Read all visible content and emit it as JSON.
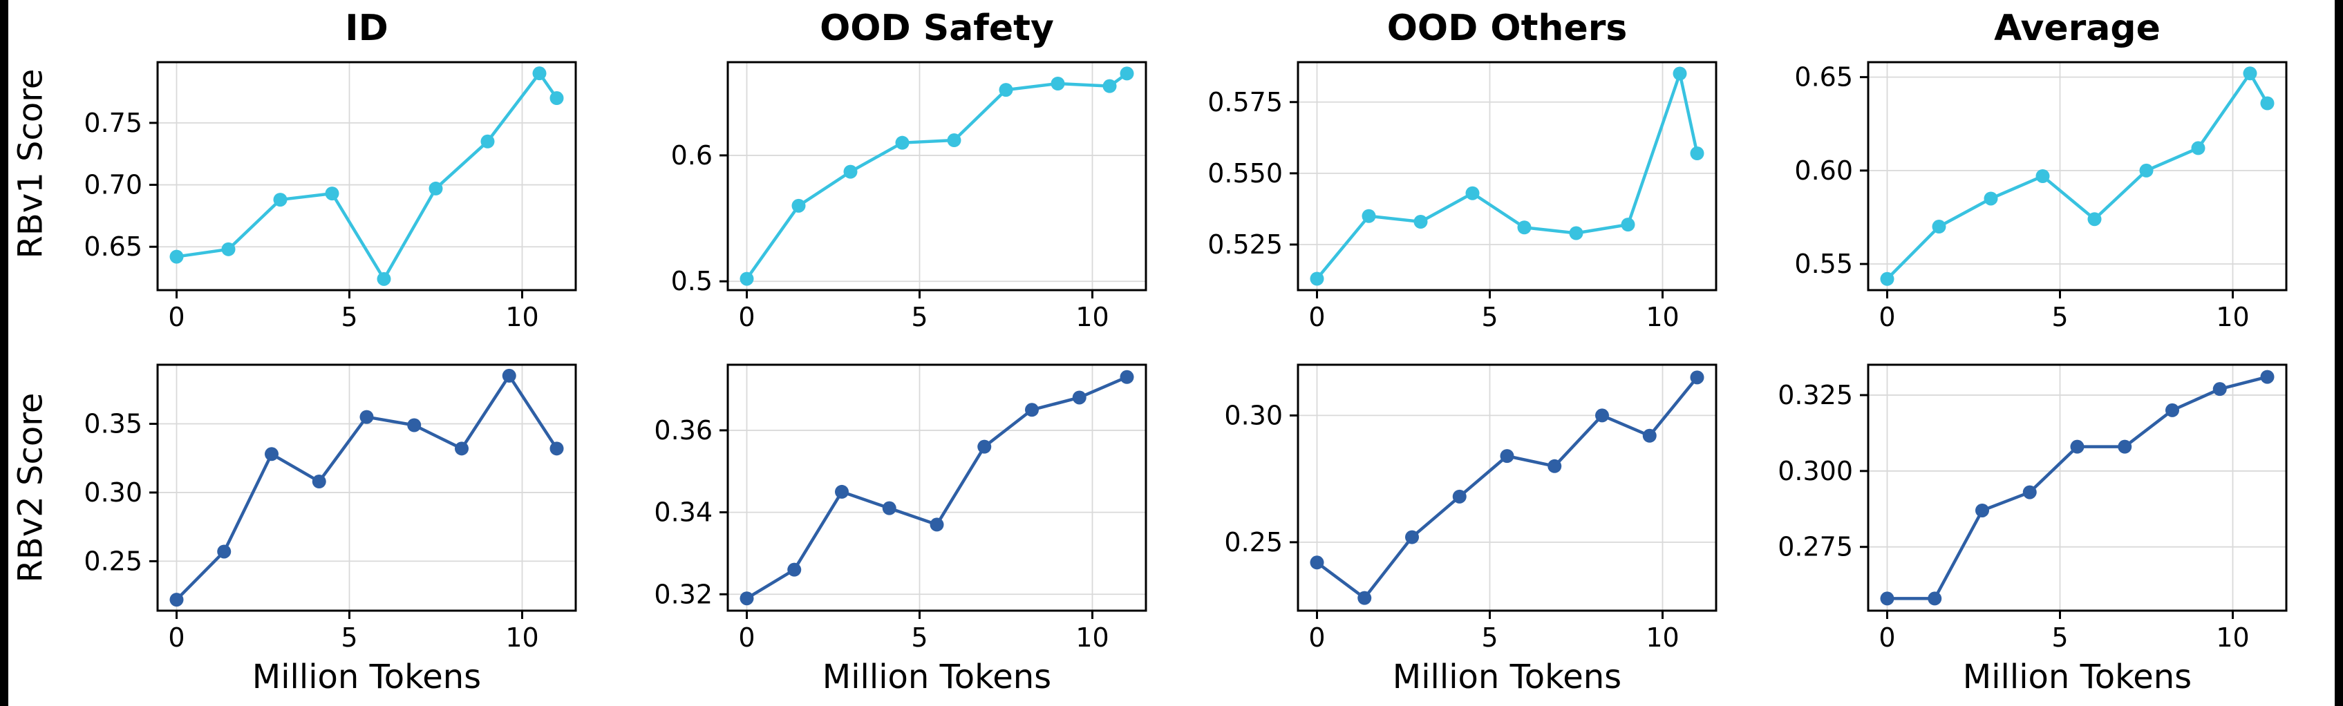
{
  "figure": {
    "row_labels": [
      "RBv1 Score",
      "RBv2 Score"
    ],
    "col_titles": [
      "ID",
      "OOD Safety",
      "OOD Others",
      "Average"
    ],
    "xlabel": "Million Tokens",
    "colors": {
      "rbv1_series": "#38c2e0",
      "rbv2_series": "#2e5fa5",
      "grid": "#d9d9d9",
      "spine": "#000000",
      "background": "#ffffff",
      "outer_frame": "#000000"
    }
  },
  "chart_data": [
    {
      "type": "line",
      "title": "ID",
      "xlabel": "",
      "series_name": "RBv1 Score",
      "series_color": "#38c2e0",
      "x": [
        0,
        1.5,
        3,
        4.5,
        6,
        7.5,
        9,
        10.5,
        11
      ],
      "y": [
        0.642,
        0.648,
        0.688,
        0.693,
        0.624,
        0.697,
        0.735,
        0.79,
        0.77
      ],
      "xlim": [
        -0.55,
        11.55
      ],
      "ylim": [
        0.615,
        0.799
      ],
      "xticks": [
        {
          "v": 0,
          "label": "0"
        },
        {
          "v": 5,
          "label": "5"
        },
        {
          "v": 10,
          "label": "10"
        }
      ],
      "yticks": [
        {
          "v": 0.65,
          "label": "0.65"
        },
        {
          "v": 0.7,
          "label": "0.70"
        },
        {
          "v": 0.75,
          "label": "0.75"
        }
      ],
      "grid": true
    },
    {
      "type": "line",
      "title": "OOD Safety",
      "xlabel": "",
      "series_name": "RBv1 Score",
      "series_color": "#38c2e0",
      "x": [
        0,
        1.5,
        3,
        4.5,
        6,
        7.5,
        9,
        10.5,
        11
      ],
      "y": [
        0.502,
        0.56,
        0.587,
        0.61,
        0.612,
        0.652,
        0.657,
        0.655,
        0.665
      ],
      "xlim": [
        -0.55,
        11.55
      ],
      "ylim": [
        0.493,
        0.674
      ],
      "xticks": [
        {
          "v": 0,
          "label": "0"
        },
        {
          "v": 5,
          "label": "5"
        },
        {
          "v": 10,
          "label": "10"
        }
      ],
      "yticks": [
        {
          "v": 0.5,
          "label": "0.5"
        },
        {
          "v": 0.6,
          "label": "0.6"
        }
      ],
      "grid": true
    },
    {
      "type": "line",
      "title": "OOD Others",
      "xlabel": "",
      "series_name": "RBv1 Score",
      "series_color": "#38c2e0",
      "x": [
        0,
        1.5,
        3,
        4.5,
        6,
        7.5,
        9,
        10.5,
        11
      ],
      "y": [
        0.513,
        0.535,
        0.533,
        0.543,
        0.531,
        0.529,
        0.532,
        0.585,
        0.557
      ],
      "xlim": [
        -0.55,
        11.55
      ],
      "ylim": [
        0.509,
        0.589
      ],
      "xticks": [
        {
          "v": 0,
          "label": "0"
        },
        {
          "v": 5,
          "label": "5"
        },
        {
          "v": 10,
          "label": "10"
        }
      ],
      "yticks": [
        {
          "v": 0.525,
          "label": "0.525"
        },
        {
          "v": 0.55,
          "label": "0.550"
        },
        {
          "v": 0.575,
          "label": "0.575"
        }
      ],
      "grid": true
    },
    {
      "type": "line",
      "title": "Average",
      "xlabel": "",
      "series_name": "RBv1 Score",
      "series_color": "#38c2e0",
      "x": [
        0,
        1.5,
        3,
        4.5,
        6,
        7.5,
        9,
        10.5,
        11
      ],
      "y": [
        0.542,
        0.57,
        0.585,
        0.597,
        0.574,
        0.6,
        0.612,
        0.652,
        0.636
      ],
      "xlim": [
        -0.55,
        11.55
      ],
      "ylim": [
        0.536,
        0.658
      ],
      "xticks": [
        {
          "v": 0,
          "label": "0"
        },
        {
          "v": 5,
          "label": "5"
        },
        {
          "v": 10,
          "label": "10"
        }
      ],
      "yticks": [
        {
          "v": 0.55,
          "label": "0.55"
        },
        {
          "v": 0.6,
          "label": "0.60"
        },
        {
          "v": 0.65,
          "label": "0.65"
        }
      ],
      "grid": true
    },
    {
      "type": "line",
      "title": "",
      "xlabel": "Million Tokens",
      "series_name": "RBv2 Score",
      "series_color": "#2e5fa5",
      "x": [
        0,
        1.375,
        2.75,
        4.125,
        5.5,
        6.875,
        8.25,
        9.625,
        11
      ],
      "y": [
        0.222,
        0.257,
        0.328,
        0.308,
        0.355,
        0.349,
        0.332,
        0.385,
        0.332
      ],
      "xlim": [
        -0.55,
        11.55
      ],
      "ylim": [
        0.214,
        0.393
      ],
      "xticks": [
        {
          "v": 0,
          "label": "0"
        },
        {
          "v": 5,
          "label": "5"
        },
        {
          "v": 10,
          "label": "10"
        }
      ],
      "yticks": [
        {
          "v": 0.25,
          "label": "0.25"
        },
        {
          "v": 0.3,
          "label": "0.30"
        },
        {
          "v": 0.35,
          "label": "0.35"
        }
      ],
      "grid": true
    },
    {
      "type": "line",
      "title": "",
      "xlabel": "Million Tokens",
      "series_name": "RBv2 Score",
      "series_color": "#2e5fa5",
      "x": [
        0,
        1.375,
        2.75,
        4.125,
        5.5,
        6.875,
        8.25,
        9.625,
        11
      ],
      "y": [
        0.319,
        0.326,
        0.345,
        0.341,
        0.337,
        0.356,
        0.365,
        0.368,
        0.373
      ],
      "xlim": [
        -0.55,
        11.55
      ],
      "ylim": [
        0.316,
        0.376
      ],
      "xticks": [
        {
          "v": 0,
          "label": "0"
        },
        {
          "v": 5,
          "label": "5"
        },
        {
          "v": 10,
          "label": "10"
        }
      ],
      "yticks": [
        {
          "v": 0.32,
          "label": "0.32"
        },
        {
          "v": 0.34,
          "label": "0.34"
        },
        {
          "v": 0.36,
          "label": "0.36"
        }
      ],
      "grid": true
    },
    {
      "type": "line",
      "title": "",
      "xlabel": "Million Tokens",
      "series_name": "RBv2 Score",
      "series_color": "#2e5fa5",
      "x": [
        0,
        1.375,
        2.75,
        4.125,
        5.5,
        6.875,
        8.25,
        9.625,
        11
      ],
      "y": [
        0.242,
        0.228,
        0.252,
        0.268,
        0.284,
        0.28,
        0.3,
        0.292,
        0.315
      ],
      "xlim": [
        -0.55,
        11.55
      ],
      "ylim": [
        0.223,
        0.32
      ],
      "xticks": [
        {
          "v": 0,
          "label": "0"
        },
        {
          "v": 5,
          "label": "5"
        },
        {
          "v": 10,
          "label": "10"
        }
      ],
      "yticks": [
        {
          "v": 0.25,
          "label": "0.25"
        },
        {
          "v": 0.3,
          "label": "0.30"
        }
      ],
      "grid": true
    },
    {
      "type": "line",
      "title": "",
      "xlabel": "Million Tokens",
      "series_name": "RBv2 Score",
      "series_color": "#2e5fa5",
      "x": [
        0,
        1.375,
        2.75,
        4.125,
        5.5,
        6.875,
        8.25,
        9.625,
        11
      ],
      "y": [
        0.258,
        0.258,
        0.287,
        0.293,
        0.308,
        0.308,
        0.32,
        0.327,
        0.331
      ],
      "xlim": [
        -0.55,
        11.55
      ],
      "ylim": [
        0.254,
        0.335
      ],
      "xticks": [
        {
          "v": 0,
          "label": "0"
        },
        {
          "v": 5,
          "label": "5"
        },
        {
          "v": 10,
          "label": "10"
        }
      ],
      "yticks": [
        {
          "v": 0.275,
          "label": "0.275"
        },
        {
          "v": 0.3,
          "label": "0.300"
        },
        {
          "v": 0.325,
          "label": "0.325"
        }
      ],
      "grid": true
    }
  ]
}
